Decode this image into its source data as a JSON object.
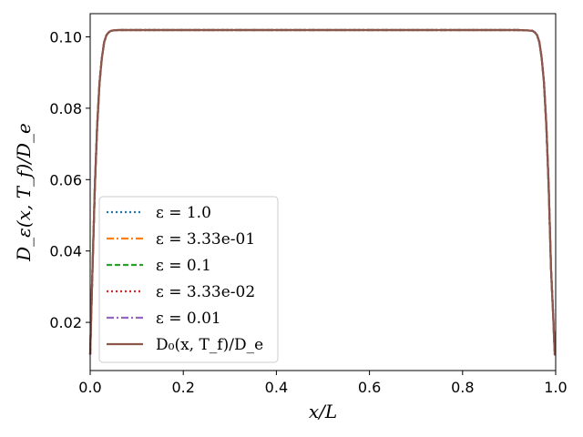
{
  "chart_data": {
    "type": "line",
    "xlabel": "x/L",
    "ylabel": "D_ε(x, T_f)/D_e",
    "xlim": [
      0.0,
      1.0
    ],
    "ylim": [
      0.0065,
      0.1065
    ],
    "xticks": [
      0.0,
      0.2,
      0.4,
      0.6,
      0.8,
      1.0
    ],
    "xtick_labels": [
      "0.0",
      "0.2",
      "0.4",
      "0.6",
      "0.8",
      "1.0"
    ],
    "yticks": [
      0.02,
      0.04,
      0.06,
      0.08,
      0.1
    ],
    "ytick_labels": [
      "0.02",
      "0.04",
      "0.06",
      "0.08",
      "0.10"
    ],
    "grid": false,
    "legend_position": "lower-left",
    "x": [
      0.0,
      0.002,
      0.005,
      0.01,
      0.015,
      0.02,
      0.025,
      0.03,
      0.035,
      0.04,
      0.045,
      0.05,
      0.06,
      0.08,
      0.1,
      0.2,
      0.3,
      0.4,
      0.5,
      0.6,
      0.7,
      0.8,
      0.9,
      0.92,
      0.94,
      0.95,
      0.955,
      0.96,
      0.965,
      0.97,
      0.975,
      0.98,
      0.985,
      0.99,
      0.995,
      0.998,
      1.0
    ],
    "series": [
      {
        "name": "ε = 1.0",
        "color": "#1f77b4",
        "dash": "dotted",
        "values": [
          0.011,
          0.021,
          0.035,
          0.058,
          0.075,
          0.087,
          0.094,
          0.0985,
          0.1005,
          0.1013,
          0.1017,
          0.1018,
          0.1019,
          0.1019,
          0.1019,
          0.1019,
          0.1019,
          0.1019,
          0.1019,
          0.1019,
          0.1019,
          0.1019,
          0.1019,
          0.1019,
          0.1018,
          0.1017,
          0.1013,
          0.1005,
          0.0985,
          0.094,
          0.087,
          0.075,
          0.058,
          0.035,
          0.021,
          0.011,
          0.011
        ]
      },
      {
        "name": "ε = 3.33e-01",
        "color": "#ff7f0e",
        "dash": "dashdot",
        "values": [
          0.011,
          0.021,
          0.035,
          0.058,
          0.075,
          0.087,
          0.094,
          0.0985,
          0.1005,
          0.1013,
          0.1017,
          0.1018,
          0.1019,
          0.1019,
          0.1019,
          0.1019,
          0.1019,
          0.1019,
          0.1019,
          0.1019,
          0.1019,
          0.1019,
          0.1019,
          0.1019,
          0.1018,
          0.1017,
          0.1013,
          0.1005,
          0.0985,
          0.094,
          0.087,
          0.075,
          0.058,
          0.035,
          0.021,
          0.011,
          0.011
        ]
      },
      {
        "name": "ε = 0.1",
        "color": "#2ca02c",
        "dash": "dashed",
        "values": [
          0.011,
          0.021,
          0.035,
          0.058,
          0.075,
          0.087,
          0.094,
          0.0985,
          0.1005,
          0.1013,
          0.1017,
          0.1018,
          0.1019,
          0.1019,
          0.1019,
          0.1019,
          0.1019,
          0.1019,
          0.1019,
          0.1019,
          0.1019,
          0.1019,
          0.1019,
          0.1019,
          0.1018,
          0.1017,
          0.1013,
          0.1005,
          0.0985,
          0.094,
          0.087,
          0.075,
          0.058,
          0.035,
          0.021,
          0.011,
          0.011
        ]
      },
      {
        "name": "ε = 3.33e-02",
        "color": "#d62728",
        "dash": "dotted",
        "values": [
          0.011,
          0.021,
          0.035,
          0.058,
          0.075,
          0.087,
          0.094,
          0.0985,
          0.1005,
          0.1013,
          0.1017,
          0.1018,
          0.1019,
          0.1019,
          0.1019,
          0.1019,
          0.1019,
          0.1019,
          0.1019,
          0.1019,
          0.1019,
          0.1019,
          0.1019,
          0.1019,
          0.1018,
          0.1017,
          0.1013,
          0.1005,
          0.0985,
          0.094,
          0.087,
          0.075,
          0.058,
          0.035,
          0.021,
          0.011,
          0.011
        ]
      },
      {
        "name": "ε = 0.01",
        "color": "#9467bd",
        "dash": "dashdot",
        "values": [
          0.011,
          0.021,
          0.035,
          0.058,
          0.075,
          0.087,
          0.094,
          0.0985,
          0.1005,
          0.1013,
          0.1017,
          0.1018,
          0.1019,
          0.1019,
          0.1019,
          0.1019,
          0.1019,
          0.1019,
          0.1019,
          0.1019,
          0.1019,
          0.1019,
          0.1019,
          0.1019,
          0.1018,
          0.1017,
          0.1013,
          0.1005,
          0.0985,
          0.094,
          0.087,
          0.075,
          0.058,
          0.035,
          0.021,
          0.011,
          0.011
        ]
      },
      {
        "name": "D₀(x, T_f)/D_e",
        "color": "#8c564b",
        "dash": "solid",
        "values": [
          0.011,
          0.021,
          0.035,
          0.058,
          0.075,
          0.087,
          0.094,
          0.0985,
          0.1005,
          0.1013,
          0.1017,
          0.1018,
          0.1019,
          0.1019,
          0.1019,
          0.1019,
          0.1019,
          0.1019,
          0.1019,
          0.1019,
          0.1019,
          0.1019,
          0.1019,
          0.1019,
          0.1018,
          0.1017,
          0.1013,
          0.1005,
          0.0985,
          0.094,
          0.087,
          0.075,
          0.058,
          0.035,
          0.021,
          0.011,
          0.011
        ]
      }
    ]
  }
}
